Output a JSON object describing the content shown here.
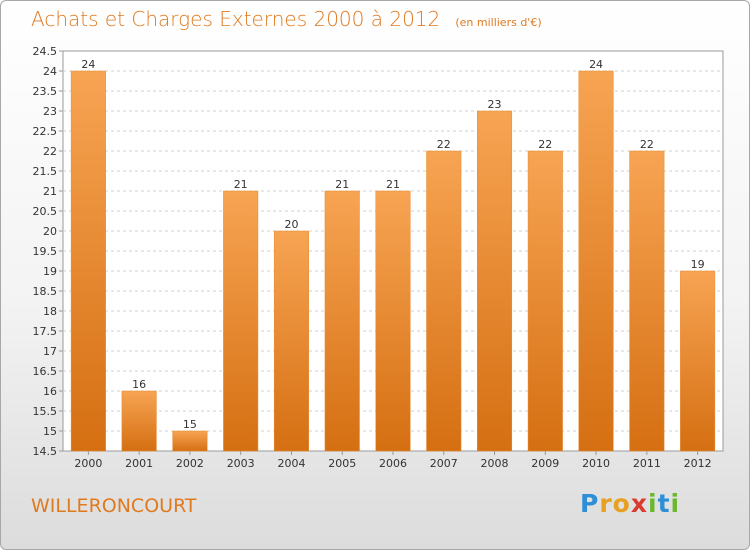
{
  "header": {
    "title": "Achats et Charges Externes 2000 à 2012",
    "subtitle": "(en milliers d'€)"
  },
  "footer": {
    "town": "WILLERONCOURT",
    "logo_letters": [
      {
        "ch": "P",
        "color": "#2f8fd6"
      },
      {
        "ch": "r",
        "color": "#e8a020"
      },
      {
        "ch": "o",
        "color": "#e8a020"
      },
      {
        "ch": "x",
        "color": "#d93c2c"
      },
      {
        "ch": "i",
        "color": "#6ab82f"
      },
      {
        "ch": "t",
        "color": "#2f8fd6"
      },
      {
        "ch": "i",
        "color": "#6ab82f"
      }
    ]
  },
  "chart_data": {
    "type": "bar",
    "title": "Achats et Charges Externes 2000 à 2012",
    "subtitle": "(en milliers d'€)",
    "categories": [
      "2000",
      "2001",
      "2002",
      "2003",
      "2004",
      "2005",
      "2006",
      "2007",
      "2008",
      "2009",
      "2010",
      "2011",
      "2012"
    ],
    "values": [
      24,
      16,
      15,
      21,
      20,
      21,
      21,
      22,
      23,
      22,
      24,
      22,
      19
    ],
    "ylim": [
      14.5,
      24.5
    ],
    "yticks": [
      "14.5",
      "15",
      "15.5",
      "16",
      "16.5",
      "17",
      "17.5",
      "18",
      "18.5",
      "19",
      "19.5",
      "20",
      "20.5",
      "21",
      "21.5",
      "22",
      "22.5",
      "23",
      "23.5",
      "24",
      "24.5"
    ],
    "grid": true,
    "bar_color_top": "#f7a453",
    "bar_color_bottom": "#d56f12"
  }
}
